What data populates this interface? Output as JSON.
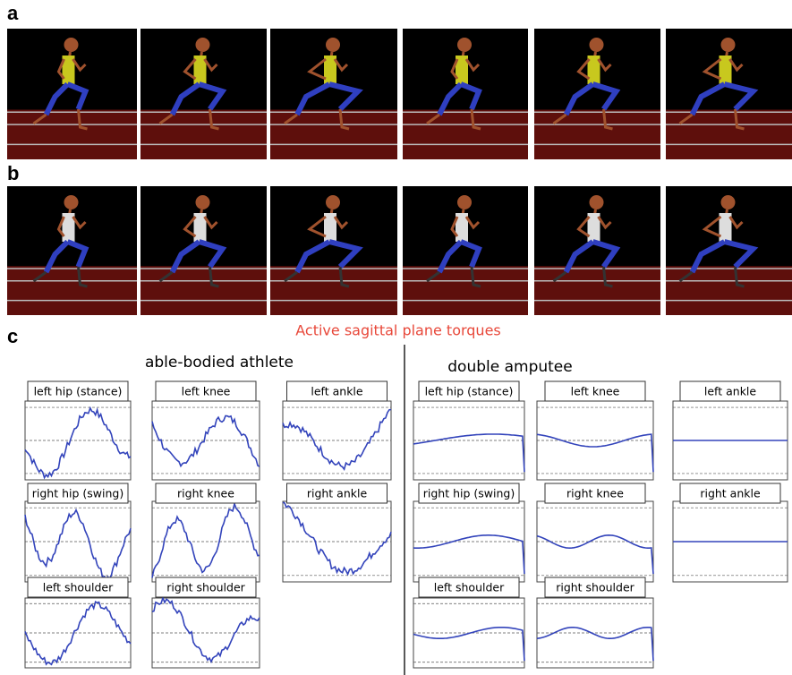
{
  "panels": {
    "a": {
      "label": "a"
    },
    "b": {
      "label": "b"
    },
    "c": {
      "label": "c",
      "title": "Active sagittal plane torques",
      "groups": [
        {
          "title": "able-bodied athlete",
          "plots": [
            "left hip (stance)",
            "left knee",
            "left ankle",
            "right hip (swing)",
            "right knee",
            "right ankle",
            "left shoulder",
            "right shoulder"
          ]
        },
        {
          "title": "double amputee",
          "plots": [
            "left hip (stance)",
            "left knee",
            "left ankle",
            "right hip (swing)",
            "right knee",
            "right ankle",
            "left shoulder",
            "right shoulder"
          ]
        }
      ]
    }
  }
}
